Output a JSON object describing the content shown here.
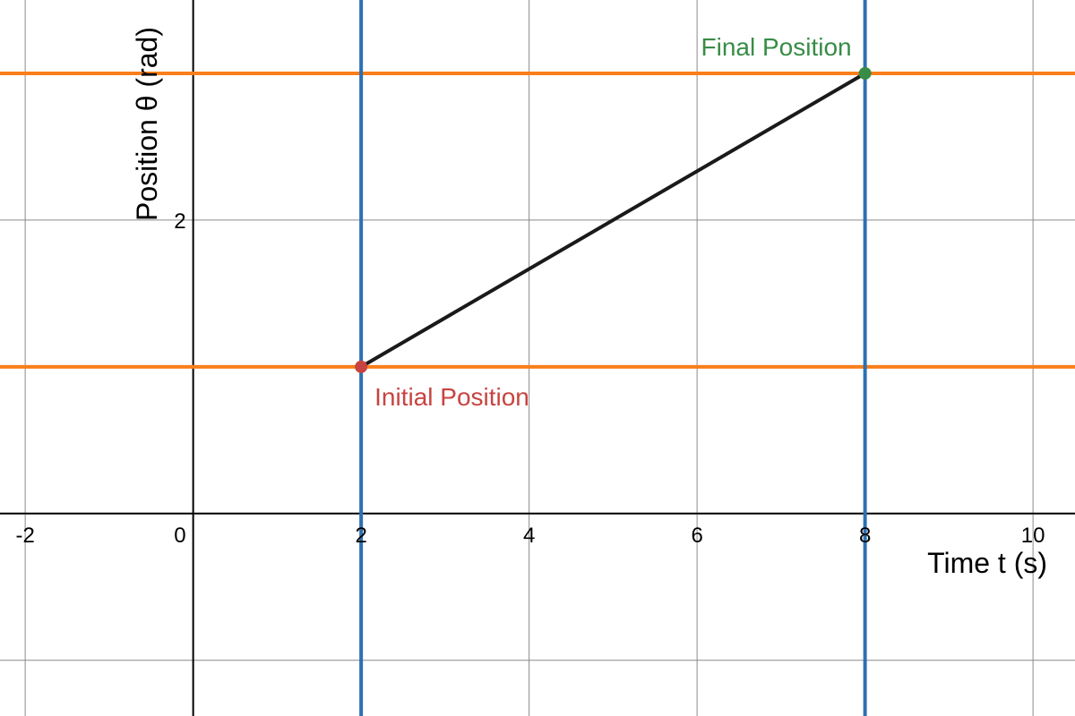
{
  "chart_data": {
    "type": "line",
    "title": "",
    "xlabel": "Time t (s)",
    "ylabel": "Position θ (rad)",
    "xlim": [
      -2.3,
      10.5
    ],
    "ylim": [
      -1.38,
      3.5
    ],
    "grid": true,
    "x_ticks": [
      -2,
      0,
      2,
      4,
      6,
      8,
      10
    ],
    "y_ticks": [
      2
    ],
    "x_tick_labels": [
      "-2",
      "0",
      "2",
      "4",
      "6",
      "8",
      "10"
    ],
    "y_tick_labels": [
      "2"
    ],
    "origin_label": "0",
    "grid_x": [
      -2,
      2,
      4,
      6,
      8,
      10
    ],
    "grid_y": [
      -1,
      1,
      2,
      3
    ],
    "vertical_lines": [
      {
        "x": 2,
        "color": "#2d70b3"
      },
      {
        "x": 8,
        "color": "#2d70b3"
      }
    ],
    "horizontal_lines": [
      {
        "y": 1,
        "color": "#fa7e19"
      },
      {
        "y": 3,
        "color": "#fa7e19"
      }
    ],
    "series": [
      {
        "x": [
          2,
          8
        ],
        "y": [
          1,
          3
        ],
        "color": "#1a1a1a"
      }
    ],
    "points": [
      {
        "x": 2,
        "y": 1,
        "color": "#c74440",
        "label": "Initial Position"
      },
      {
        "x": 8,
        "y": 3,
        "color": "#388c46",
        "label": "Final Position"
      }
    ]
  }
}
